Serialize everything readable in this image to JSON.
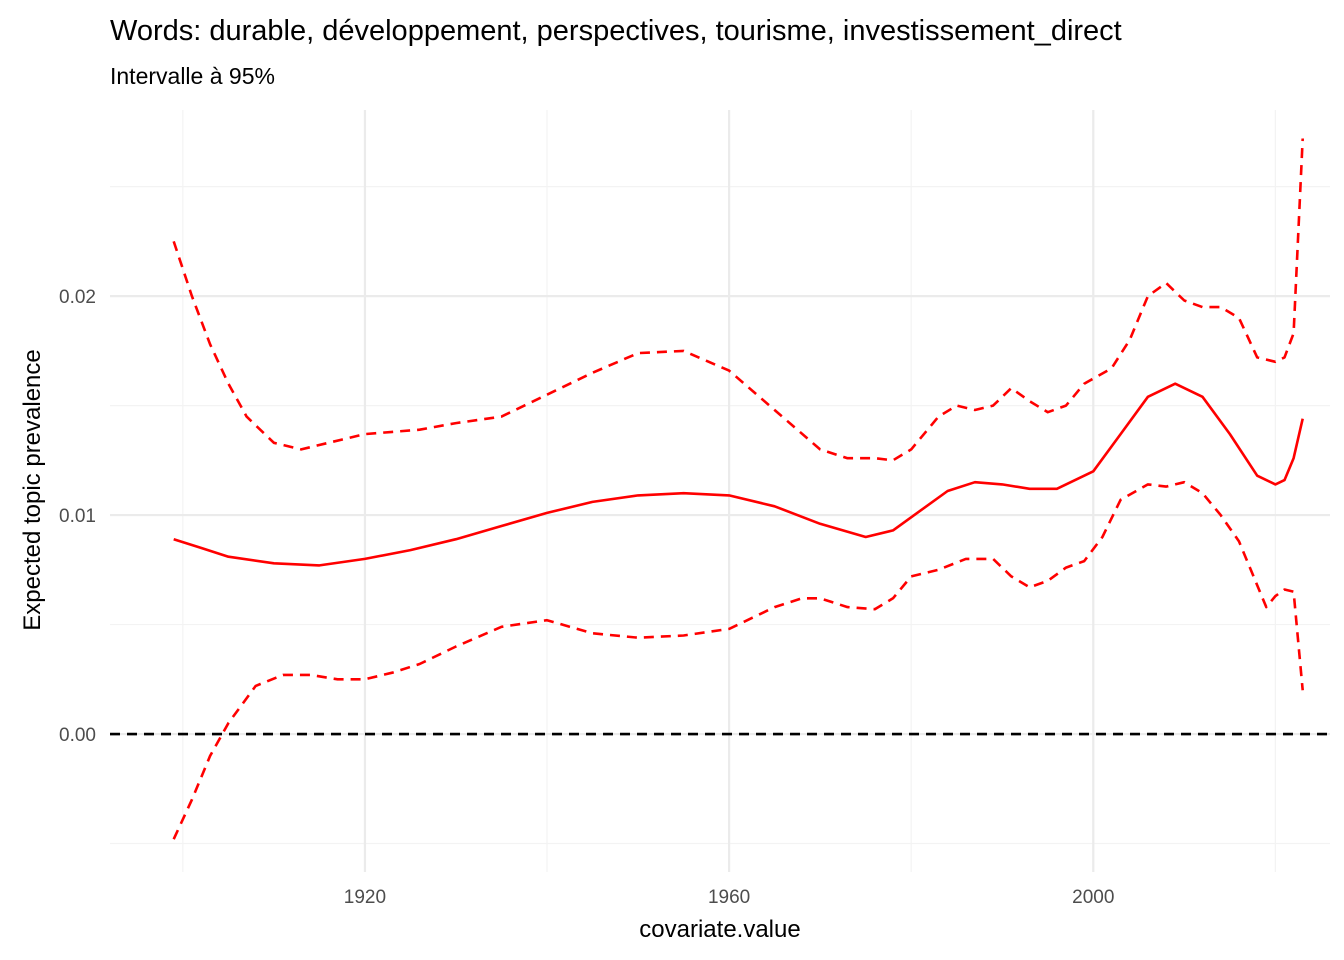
{
  "chart_data": {
    "type": "line",
    "title": "Words: durable, développement, perspectives, tourisme, investissement_direct",
    "subtitle": "Intervalle à 95%",
    "xlabel": "covariate.value",
    "ylabel": "Expected topic prevalence",
    "xlim": [
      1892,
      2026
    ],
    "ylim": [
      -0.0063,
      0.0285
    ],
    "x_ticks": [
      1920,
      1960,
      2000
    ],
    "x_tick_labels": [
      "1920",
      "1960",
      "2000"
    ],
    "y_ticks": [
      0.0,
      0.01,
      0.02
    ],
    "y_tick_labels": [
      "0.00",
      "0.01",
      "0.02"
    ],
    "x_minor": [
      1900,
      1940,
      1980,
      2020
    ],
    "y_minor": [
      -0.005,
      0.005,
      0.015,
      0.025
    ],
    "grid": true,
    "reference_line": {
      "y": 0.0,
      "style": "dashed",
      "color": "#000000"
    },
    "colors": {
      "series": "#ff0000",
      "reference": "#000000"
    },
    "series": [
      {
        "role": "estimate",
        "style": "solid",
        "x": [
          1899,
          1902,
          1905,
          1910,
          1915,
          1920,
          1925,
          1930,
          1935,
          1940,
          1945,
          1950,
          1955,
          1960,
          1965,
          1970,
          1975,
          1978,
          1981,
          1984,
          1987,
          1990,
          1993,
          1996,
          2000,
          2003,
          2006,
          2009,
          2012,
          2015,
          2018,
          2020,
          2021,
          2022,
          2023
        ],
        "y": [
          0.0089,
          0.0085,
          0.0081,
          0.0078,
          0.0077,
          0.008,
          0.0084,
          0.0089,
          0.0095,
          0.0101,
          0.0106,
          0.0109,
          0.011,
          0.0109,
          0.0104,
          0.0096,
          0.009,
          0.0093,
          0.0102,
          0.0111,
          0.0115,
          0.0114,
          0.0112,
          0.0112,
          0.012,
          0.0137,
          0.0154,
          0.016,
          0.0154,
          0.0137,
          0.0118,
          0.0114,
          0.0116,
          0.0126,
          0.0144
        ]
      },
      {
        "role": "upper-95",
        "style": "dashed",
        "x": [
          1899,
          1901,
          1903,
          1905,
          1907,
          1910,
          1913,
          1916,
          1920,
          1923,
          1926,
          1930,
          1935,
          1940,
          1945,
          1950,
          1955,
          1960,
          1965,
          1970,
          1973,
          1976,
          1978,
          1980,
          1983,
          1985,
          1987,
          1989,
          1991,
          1993,
          1995,
          1997,
          1999,
          2002,
          2004,
          2006,
          2008,
          2010,
          2012,
          2014,
          2016,
          2018,
          2020,
          2021,
          2022,
          2023
        ],
        "y": [
          0.0225,
          0.02,
          0.0178,
          0.016,
          0.0145,
          0.0133,
          0.013,
          0.0133,
          0.0137,
          0.0138,
          0.0139,
          0.0142,
          0.0145,
          0.0155,
          0.0165,
          0.0174,
          0.0175,
          0.0166,
          0.0148,
          0.013,
          0.0126,
          0.0126,
          0.0125,
          0.013,
          0.0145,
          0.015,
          0.0148,
          0.015,
          0.0158,
          0.0152,
          0.0147,
          0.015,
          0.016,
          0.0167,
          0.018,
          0.02,
          0.0206,
          0.0198,
          0.0195,
          0.0195,
          0.019,
          0.0172,
          0.017,
          0.0172,
          0.0183,
          0.0272
        ]
      },
      {
        "role": "lower-95",
        "style": "dashed",
        "x": [
          1899,
          1901,
          1903,
          1905,
          1908,
          1911,
          1914,
          1917,
          1920,
          1923,
          1926,
          1930,
          1935,
          1940,
          1945,
          1950,
          1955,
          1960,
          1965,
          1968,
          1970,
          1973,
          1976,
          1978,
          1980,
          1983,
          1986,
          1989,
          1991,
          1993,
          1995,
          1997,
          1999,
          2001,
          2003,
          2006,
          2008,
          2010,
          2012,
          2014,
          2016,
          2018,
          2019,
          2020,
          2021,
          2022,
          2023
        ],
        "y": [
          -0.0048,
          -0.003,
          -0.001,
          0.0005,
          0.0022,
          0.0027,
          0.0027,
          0.0025,
          0.0025,
          0.0028,
          0.0032,
          0.004,
          0.0049,
          0.0052,
          0.0046,
          0.0044,
          0.0045,
          0.0048,
          0.0058,
          0.0062,
          0.0062,
          0.0058,
          0.0057,
          0.0062,
          0.0072,
          0.0075,
          0.008,
          0.008,
          0.0072,
          0.0067,
          0.007,
          0.0076,
          0.0079,
          0.009,
          0.0107,
          0.0114,
          0.0113,
          0.0115,
          0.011,
          0.01,
          0.0088,
          0.0068,
          0.0058,
          0.0063,
          0.0066,
          0.0065,
          0.002
        ]
      }
    ]
  }
}
